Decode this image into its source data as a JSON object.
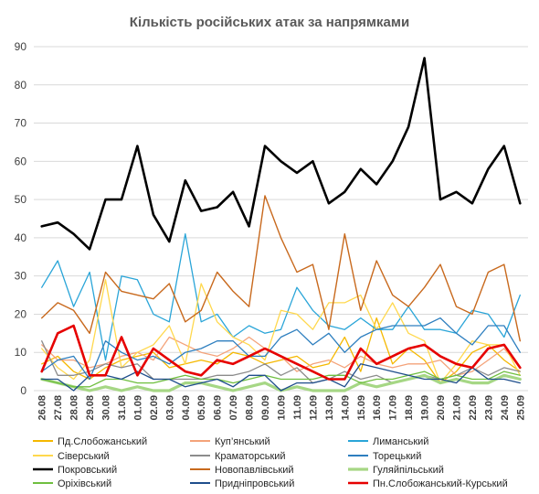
{
  "chart_data": {
    "type": "line",
    "title": "Кількість російських атак за напрямками",
    "xlabel": "",
    "ylabel": "",
    "ylim": [
      0,
      90
    ],
    "yticks": [
      0,
      10,
      20,
      30,
      40,
      50,
      60,
      70,
      80,
      90
    ],
    "grid": true,
    "legend_position": "bottom",
    "categories": [
      "26.08",
      "27.08",
      "28.08",
      "29.08",
      "30.08",
      "31.08",
      "01.09",
      "02.09",
      "03.09",
      "04.09",
      "05.09",
      "06.09",
      "07.09",
      "08.09",
      "09.09",
      "10.09",
      "11.09",
      "12.09",
      "13.09",
      "14.09",
      "15.09",
      "16.09",
      "17.09",
      "18.09",
      "19.09",
      "20.09",
      "21.09",
      "22.09",
      "23.09",
      "24.09",
      "25.09"
    ],
    "series": [
      {
        "name": "Пд.Слобожанський",
        "color": "#f5b800",
        "width": 1.3,
        "values": [
          7,
          9,
          5,
          3,
          6,
          8,
          9,
          10,
          6,
          7,
          8,
          7,
          10,
          9,
          7,
          8,
          9,
          6,
          7,
          14,
          5,
          19,
          7,
          11,
          8,
          2,
          5,
          10,
          12,
          8,
          5
        ]
      },
      {
        "name": "Куп’янський",
        "color": "#f4a37a",
        "width": 1.3,
        "values": [
          12,
          8,
          8,
          6,
          7,
          9,
          10,
          8,
          14,
          12,
          10,
          9,
          11,
          14,
          11,
          9,
          5,
          7,
          8,
          6,
          9,
          7,
          6,
          7,
          7,
          8,
          4,
          5,
          8,
          11,
          6
        ]
      },
      {
        "name": "Лиманський",
        "color": "#2aa5d8",
        "width": 1.3,
        "values": [
          27,
          34,
          22,
          31,
          8,
          30,
          29,
          20,
          18,
          41,
          18,
          20,
          14,
          17,
          15,
          16,
          27,
          21,
          17,
          16,
          19,
          16,
          16,
          22,
          16,
          16,
          15,
          21,
          20,
          14,
          25
        ]
      },
      {
        "name": "Сіверський",
        "color": "#ffd84d",
        "width": 1.3,
        "values": [
          11,
          6,
          3,
          8,
          29,
          6,
          10,
          12,
          17,
          7,
          28,
          18,
          14,
          12,
          8,
          21,
          20,
          16,
          23,
          23,
          25,
          16,
          23,
          15,
          13,
          2,
          7,
          13,
          12,
          12,
          4
        ]
      },
      {
        "name": "Краматорський",
        "color": "#8c8c8c",
        "width": 1.3,
        "values": [
          13,
          4,
          4,
          5,
          7,
          6,
          7,
          3,
          3,
          3,
          3,
          4,
          4,
          5,
          7,
          4,
          6,
          2,
          3,
          5,
          3,
          4,
          2,
          3,
          4,
          3,
          4,
          6,
          4,
          6,
          5
        ]
      },
      {
        "name": "Торецький",
        "color": "#2e7fbf",
        "width": 1.3,
        "values": [
          5,
          8,
          9,
          3,
          13,
          10,
          8,
          9,
          7,
          10,
          11,
          13,
          13,
          9,
          9,
          14,
          16,
          12,
          15,
          10,
          14,
          16,
          17,
          17,
          17,
          19,
          15,
          12,
          17,
          17,
          10
        ]
      },
      {
        "name": "Покровський",
        "color": "#000000",
        "width": 2.6,
        "values": [
          43,
          44,
          41,
          37,
          50,
          50,
          64,
          46,
          39,
          55,
          47,
          48,
          52,
          43,
          64,
          60,
          57,
          60,
          49,
          52,
          58,
          54,
          60,
          69,
          87,
          50,
          52,
          49,
          58,
          64,
          49
        ]
      },
      {
        "name": "Новопавлівський",
        "color": "#c8691d",
        "width": 1.4,
        "values": [
          19,
          23,
          21,
          15,
          31,
          26,
          25,
          24,
          28,
          18,
          21,
          31,
          26,
          22,
          51,
          40,
          31,
          33,
          16,
          41,
          21,
          34,
          25,
          22,
          27,
          33,
          22,
          20,
          31,
          33,
          13
        ]
      },
      {
        "name": "Гуляйпільський",
        "color": "#a6d785",
        "width": 3.2,
        "values": [
          3,
          2,
          1,
          0,
          1,
          0,
          1,
          0,
          0,
          2,
          2,
          1,
          0,
          1,
          2,
          0,
          1,
          0,
          0,
          0,
          2,
          1,
          2,
          3,
          4,
          2,
          3,
          2,
          2,
          4,
          3
        ]
      },
      {
        "name": "Оріхівський",
        "color": "#6fbf3f",
        "width": 1.3,
        "values": [
          3,
          2,
          1,
          1,
          3,
          3,
          2,
          2,
          3,
          4,
          3,
          3,
          2,
          3,
          4,
          3,
          3,
          3,
          4,
          4,
          2,
          3,
          3,
          4,
          5,
          3,
          4,
          3,
          3,
          5,
          4
        ]
      },
      {
        "name": "Придніпровський",
        "color": "#1f4e8c",
        "width": 1.3,
        "values": [
          3,
          3,
          0,
          4,
          4,
          3,
          5,
          3,
          3,
          1,
          2,
          3,
          1,
          4,
          4,
          0,
          2,
          2,
          3,
          1,
          7,
          6,
          5,
          4,
          3,
          3,
          2,
          6,
          3,
          3,
          2
        ]
      },
      {
        "name": "Пн.Слобожанський-Курський",
        "color": "#e60000",
        "width": 2.6,
        "values": [
          5,
          15,
          17,
          4,
          4,
          14,
          4,
          11,
          8,
          5,
          4,
          8,
          7,
          9,
          11,
          9,
          7,
          5,
          3,
          3,
          11,
          7,
          9,
          11,
          12,
          9,
          7,
          6,
          11,
          12,
          6
        ]
      }
    ]
  }
}
